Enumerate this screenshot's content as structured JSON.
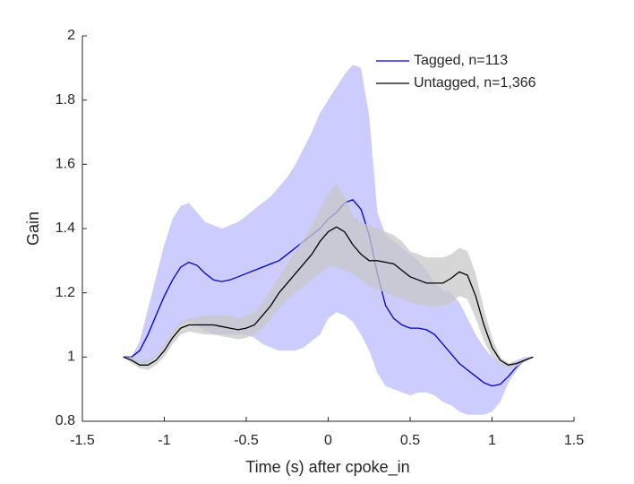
{
  "chart_data": {
    "type": "line",
    "xlabel": "Time (s) after cpoke_in",
    "ylabel": "Gain",
    "x": [
      -1.25,
      -1.2,
      -1.15,
      -1.1,
      -1.05,
      -1.0,
      -0.95,
      -0.9,
      -0.85,
      -0.8,
      -0.75,
      -0.7,
      -0.65,
      -0.6,
      -0.55,
      -0.5,
      -0.45,
      -0.4,
      -0.35,
      -0.3,
      -0.25,
      -0.2,
      -0.15,
      -0.1,
      -0.05,
      0,
      0.05,
      0.1,
      0.15,
      0.2,
      0.25,
      0.3,
      0.35,
      0.4,
      0.45,
      0.5,
      0.55,
      0.6,
      0.65,
      0.7,
      0.75,
      0.8,
      0.85,
      0.9,
      0.95,
      1.0,
      1.05,
      1.1,
      1.15,
      1.2,
      1.25
    ],
    "series": [
      {
        "name": "Tagged, n=113",
        "color": "#0000cc",
        "band_color": "#ccccff",
        "values": [
          1.0,
          1.0,
          1.02,
          1.07,
          1.13,
          1.19,
          1.24,
          1.28,
          1.295,
          1.285,
          1.26,
          1.24,
          1.235,
          1.24,
          1.25,
          1.26,
          1.27,
          1.28,
          1.29,
          1.3,
          1.32,
          1.34,
          1.36,
          1.38,
          1.4,
          1.43,
          1.45,
          1.48,
          1.49,
          1.46,
          1.38,
          1.26,
          1.16,
          1.12,
          1.1,
          1.09,
          1.09,
          1.085,
          1.07,
          1.04,
          1.01,
          0.98,
          0.96,
          0.94,
          0.92,
          0.91,
          0.915,
          0.94,
          0.97,
          0.99,
          1.0
        ],
        "band_upper": [
          1.0,
          1.0,
          1.05,
          1.15,
          1.25,
          1.35,
          1.43,
          1.47,
          1.48,
          1.45,
          1.42,
          1.41,
          1.4,
          1.41,
          1.42,
          1.44,
          1.46,
          1.48,
          1.5,
          1.53,
          1.56,
          1.6,
          1.65,
          1.7,
          1.76,
          1.8,
          1.84,
          1.88,
          1.91,
          1.9,
          1.75,
          1.45,
          1.38,
          1.36,
          1.34,
          1.32,
          1.3,
          1.27,
          1.23,
          1.21,
          1.2,
          1.17,
          1.12,
          1.07,
          1.03,
          1.0,
          0.98,
          0.98,
          0.99,
          1.0,
          1.0
        ],
        "band_lower": [
          1.0,
          0.99,
          0.98,
          0.98,
          1.0,
          1.03,
          1.07,
          1.1,
          1.11,
          1.1,
          1.08,
          1.07,
          1.07,
          1.07,
          1.07,
          1.07,
          1.06,
          1.04,
          1.03,
          1.02,
          1.02,
          1.02,
          1.03,
          1.05,
          1.07,
          1.12,
          1.14,
          1.13,
          1.11,
          1.07,
          1.02,
          0.95,
          0.91,
          0.9,
          0.89,
          0.88,
          0.89,
          0.89,
          0.88,
          0.86,
          0.85,
          0.83,
          0.82,
          0.82,
          0.82,
          0.83,
          0.86,
          0.92,
          0.96,
          0.99,
          1.0
        ]
      },
      {
        "name": "Untagged, n=1,366",
        "color": "#000000",
        "band_color": "#c8c8c8",
        "values": [
          1.0,
          0.99,
          0.975,
          0.975,
          0.99,
          1.02,
          1.06,
          1.09,
          1.1,
          1.1,
          1.1,
          1.1,
          1.095,
          1.09,
          1.085,
          1.09,
          1.1,
          1.13,
          1.16,
          1.2,
          1.23,
          1.26,
          1.29,
          1.32,
          1.36,
          1.39,
          1.405,
          1.39,
          1.35,
          1.32,
          1.3,
          1.3,
          1.295,
          1.29,
          1.27,
          1.25,
          1.24,
          1.23,
          1.23,
          1.23,
          1.245,
          1.265,
          1.255,
          1.19,
          1.1,
          1.03,
          0.99,
          0.975,
          0.98,
          0.99,
          1.0
        ],
        "band_upper": [
          1.0,
          1.0,
          0.985,
          0.99,
          1.005,
          1.04,
          1.08,
          1.11,
          1.12,
          1.125,
          1.13,
          1.13,
          1.13,
          1.13,
          1.12,
          1.13,
          1.14,
          1.17,
          1.21,
          1.25,
          1.29,
          1.33,
          1.37,
          1.41,
          1.46,
          1.51,
          1.54,
          1.5,
          1.44,
          1.42,
          1.41,
          1.4,
          1.39,
          1.38,
          1.36,
          1.33,
          1.32,
          1.31,
          1.31,
          1.31,
          1.32,
          1.34,
          1.33,
          1.26,
          1.15,
          1.06,
          1.0,
          0.98,
          0.985,
          0.995,
          1.0
        ],
        "band_lower": [
          1.0,
          0.98,
          0.965,
          0.96,
          0.975,
          1.0,
          1.04,
          1.07,
          1.08,
          1.075,
          1.07,
          1.07,
          1.065,
          1.06,
          1.055,
          1.06,
          1.07,
          1.09,
          1.12,
          1.15,
          1.18,
          1.2,
          1.22,
          1.24,
          1.26,
          1.28,
          1.28,
          1.27,
          1.26,
          1.24,
          1.22,
          1.21,
          1.2,
          1.19,
          1.18,
          1.17,
          1.165,
          1.16,
          1.155,
          1.16,
          1.17,
          1.19,
          1.18,
          1.12,
          1.05,
          1.0,
          0.975,
          0.965,
          0.97,
          0.985,
          1.0
        ]
      }
    ],
    "xlim": [
      -1.5,
      1.5
    ],
    "xticks": [
      -1.5,
      -1,
      -0.5,
      0,
      0.5,
      1,
      1.5
    ],
    "ylim": [
      0.8,
      2
    ],
    "yticks": [
      0.8,
      1,
      1.2,
      1.4,
      1.6,
      1.8,
      2
    ],
    "legend": "upper right"
  }
}
